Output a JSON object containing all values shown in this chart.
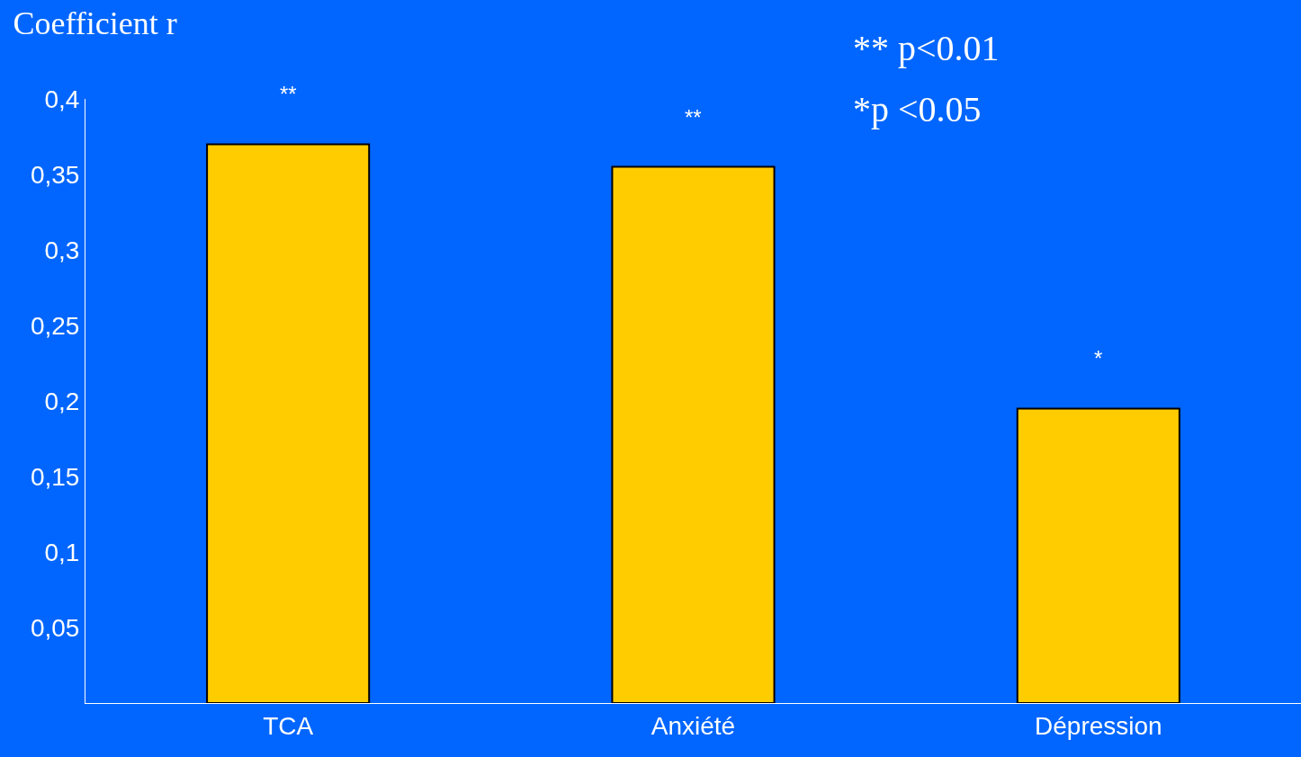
{
  "chart_data": {
    "type": "bar",
    "title": "Coefficient r",
    "categories": [
      "TCA",
      "Anxiété",
      "Dépression"
    ],
    "values": [
      0.37,
      0.355,
      0.195
    ],
    "color": "#ffcc00",
    "ylim": [
      0,
      0.4
    ],
    "yticks": [
      {
        "value": 0.05,
        "label": "0,05"
      },
      {
        "value": 0.1,
        "label": "0,1"
      },
      {
        "value": 0.15,
        "label": "0,15"
      },
      {
        "value": 0.2,
        "label": "0,2"
      },
      {
        "value": 0.25,
        "label": "0,25"
      },
      {
        "value": 0.3,
        "label": "0,3"
      },
      {
        "value": 0.35,
        "label": "0,35"
      },
      {
        "value": 0.4,
        "label": "0,4"
      }
    ],
    "grid": false,
    "annotations": [
      {
        "text": "**",
        "x": "TCA",
        "y": 0.37
      },
      {
        "text": "**",
        "x": "Anxiété",
        "y": 0.355
      },
      {
        "text": "*",
        "x": "Dépression",
        "y": 0.195
      },
      "** p<0.01",
      "*p <0.05"
    ]
  }
}
